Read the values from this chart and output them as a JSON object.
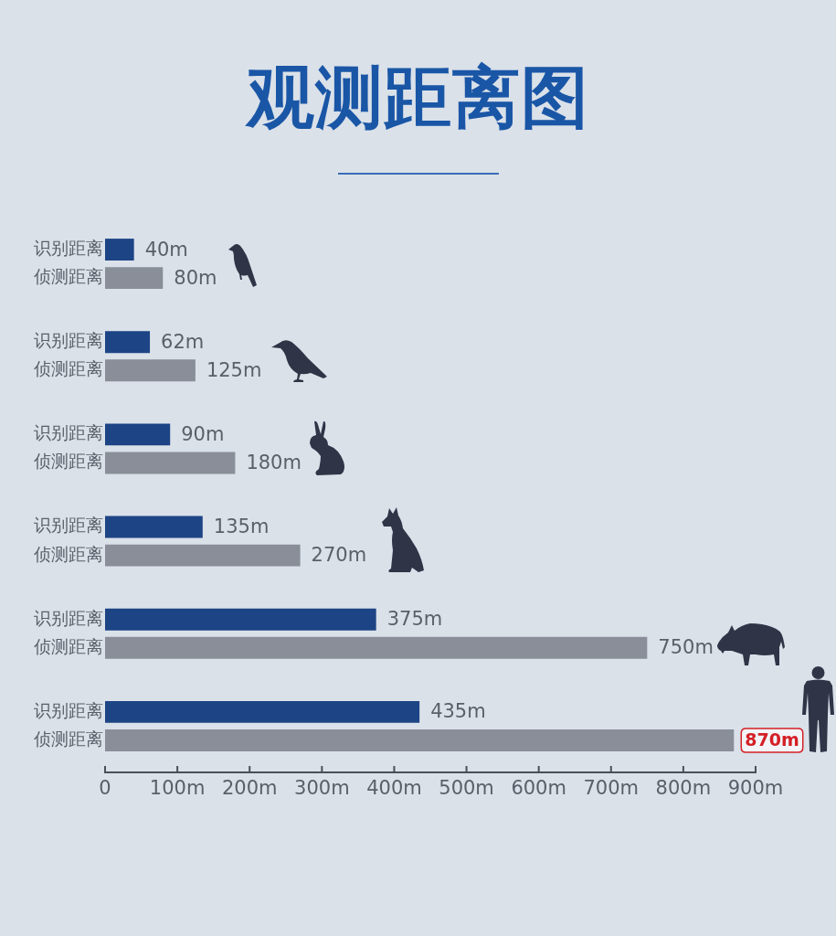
{
  "chart_data": {
    "type": "bar",
    "orientation": "horizontal",
    "title": "观测距离图",
    "categories": [
      null,
      null,
      null,
      null,
      null,
      null
    ],
    "series": [
      {
        "name": "识别距离",
        "color": "#1d4485",
        "values": [
          40,
          62,
          90,
          135,
          375,
          435
        ],
        "value_labels": [
          "40m",
          "62m",
          "90m",
          "135m",
          "375m",
          "435m"
        ]
      },
      {
        "name": "侦测距离",
        "color": "#8a8e99",
        "values": [
          80,
          125,
          180,
          270,
          750,
          870
        ],
        "value_labels": [
          "80m",
          "125m",
          "180m",
          "270m",
          "750m",
          "870m"
        ]
      }
    ],
    "xlim": [
      0,
      900
    ],
    "xticks": [
      0,
      {
        "value": 100,
        "label": "100m"
      },
      {
        "value": 200,
        "label": "200m"
      },
      {
        "value": 300,
        "label": "300m"
      },
      {
        "value": 400,
        "label": "400m"
      },
      {
        "value": 500,
        "label": "500m"
      },
      {
        "value": 600,
        "label": "600m"
      },
      {
        "value": 700,
        "label": "700m"
      },
      {
        "value": 800,
        "label": "800m"
      },
      {
        "value": 900,
        "label": "900m"
      }
    ]
  }
}
